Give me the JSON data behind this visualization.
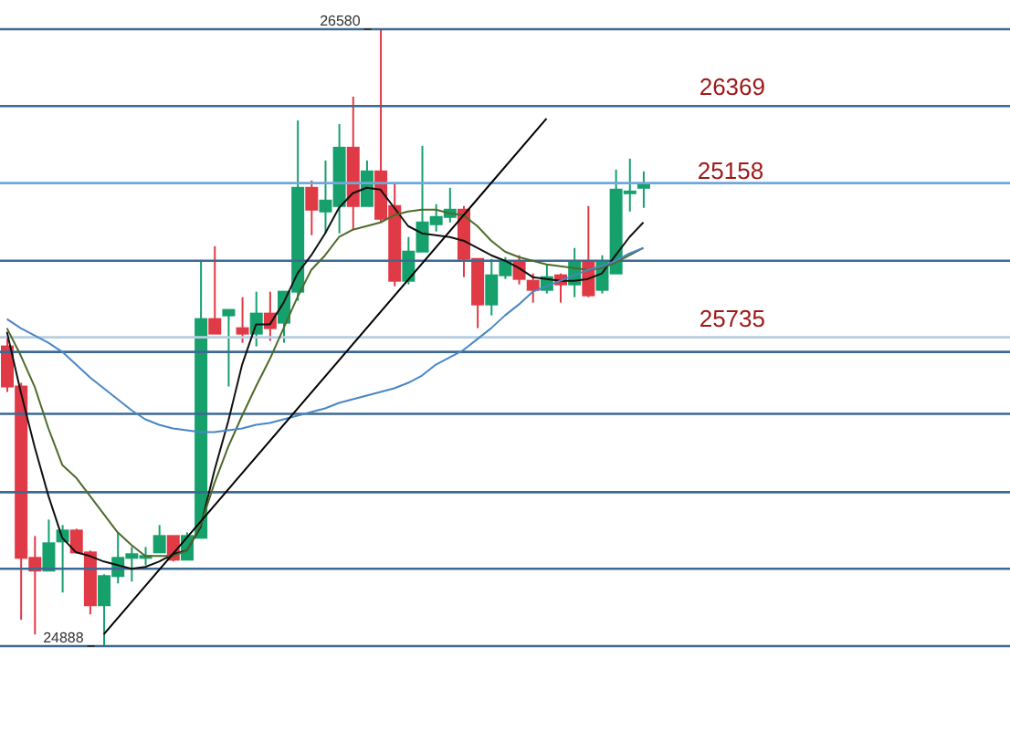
{
  "chart_data": {
    "type": "candlestick",
    "categories": [
      null,
      null,
      null,
      null,
      null,
      null,
      null,
      null,
      null,
      null,
      null,
      null,
      null,
      null,
      null,
      null,
      null,
      null,
      null,
      null,
      null,
      null,
      null,
      null,
      null,
      null,
      null,
      null,
      null,
      null,
      null,
      null,
      null,
      null,
      null,
      null,
      null,
      null,
      null,
      null,
      null,
      null,
      null,
      null,
      null,
      null,
      null
    ],
    "ohlc": [
      [
        25710,
        25735,
        25585,
        25600
      ],
      [
        25600,
        25610,
        24960,
        25130
      ],
      [
        25130,
        25190,
        24920,
        25095
      ],
      [
        25095,
        25235,
        25095,
        25170
      ],
      [
        25175,
        25220,
        25035,
        25205
      ],
      [
        25205,
        25210,
        25145,
        25145
      ],
      [
        25145,
        25150,
        24975,
        25000
      ],
      [
        25000,
        25085,
        24888,
        25080
      ],
      [
        25080,
        25200,
        25060,
        25130
      ],
      [
        25130,
        25160,
        25065,
        25140
      ],
      [
        25135,
        25160,
        25110,
        25135
      ],
      [
        25145,
        25220,
        25145,
        25190
      ],
      [
        25190,
        25190,
        25120,
        25125
      ],
      [
        25125,
        25200,
        25125,
        25190
      ],
      [
        25185,
        25945,
        25185,
        25785
      ],
      [
        25785,
        25985,
        25745,
        25745
      ],
      [
        25795,
        25810,
        25600,
        25810
      ],
      [
        25760,
        25845,
        25720,
        25745
      ],
      [
        25745,
        25860,
        25710,
        25800
      ],
      [
        25800,
        25860,
        25725,
        25760
      ],
      [
        25775,
        25860,
        25720,
        25860
      ],
      [
        25860,
        26330,
        25835,
        26145
      ],
      [
        26145,
        26165,
        26015,
        26085
      ],
      [
        26080,
        26220,
        26020,
        26110
      ],
      [
        26095,
        26320,
        26020,
        26255
      ],
      [
        26255,
        26395,
        26030,
        26095
      ],
      [
        26095,
        26220,
        26095,
        26190
      ],
      [
        26190,
        26580,
        26050,
        26060
      ],
      [
        26095,
        26160,
        25875,
        25890
      ],
      [
        25890,
        26010,
        25880,
        25970
      ],
      [
        25970,
        26260,
        25970,
        26050
      ],
      [
        26045,
        26100,
        26025,
        26065
      ],
      [
        26065,
        26145,
        26050,
        26085
      ],
      [
        26085,
        26095,
        25900,
        25950
      ],
      [
        25950,
        25950,
        25760,
        25825
      ],
      [
        25825,
        25950,
        25795,
        25905
      ],
      [
        25905,
        25955,
        25895,
        25940
      ],
      [
        25940,
        25960,
        25880,
        25895
      ],
      [
        25890,
        25910,
        25830,
        25865
      ],
      [
        25865,
        25935,
        25855,
        25900
      ],
      [
        25905,
        25910,
        25830,
        25880
      ],
      [
        25880,
        25980,
        25845,
        25940
      ],
      [
        25940,
        26095,
        25845,
        25850
      ],
      [
        25865,
        25960,
        25855,
        25940
      ],
      [
        25910,
        26195,
        25910,
        26140
      ],
      [
        26135,
        26225,
        26080,
        26135
      ],
      [
        26145,
        26190,
        26090,
        26155
      ]
    ],
    "colors": [
      "#e03a46",
      "#e03a46",
      "#e03a46",
      "#16a06c",
      "#16a06c",
      "#e03a46",
      "#e03a46",
      "#16a06c",
      "#16a06c",
      "#16a06c",
      "#16a06c",
      "#16a06c",
      "#e03a46",
      "#16a06c",
      "#16a06c",
      "#e03a46",
      "#16a06c",
      "#e03a46",
      "#16a06c",
      "#e03a46",
      "#16a06c",
      "#16a06c",
      "#e03a46",
      "#16a06c",
      "#16a06c",
      "#e03a46",
      "#16a06c",
      "#e03a46",
      "#e03a46",
      "#16a06c",
      "#16a06c",
      "#16a06c",
      "#16a06c",
      "#e03a46",
      "#e03a46",
      "#16a06c",
      "#16a06c",
      "#e03a46",
      "#e03a46",
      "#16a06c",
      "#e03a46",
      "#16a06c",
      "#e03a46",
      "#16a06c",
      "#16a06c",
      "#16a06c",
      "#16a06c"
    ],
    "series": [
      {
        "type": "line",
        "color": "#111111",
        "values": [
          25750,
          25585,
          25435,
          25300,
          25185,
          25145,
          25135,
          25120,
          25110,
          25100,
          25105,
          25120,
          25140,
          25150,
          25215,
          25370,
          25505,
          25660,
          25770,
          25770,
          25830,
          25910,
          25960,
          26020,
          26090,
          26130,
          26145,
          26140,
          26090,
          26040,
          26020,
          26015,
          26010,
          26000,
          25980,
          25960,
          25945,
          25925,
          25900,
          25895,
          25890,
          25890,
          25895,
          25910,
          25960,
          26010,
          26050
        ]
      },
      {
        "type": "line",
        "color": "#4d6b2a",
        "values": [
          25760,
          25685,
          25600,
          25485,
          25385,
          25350,
          25300,
          25250,
          25200,
          25165,
          25135,
          25135,
          25135,
          25150,
          25220,
          25335,
          25435,
          25520,
          25600,
          25675,
          25760,
          25845,
          25920,
          25960,
          26010,
          26030,
          26040,
          26050,
          26070,
          26080,
          26085,
          26085,
          26075,
          26070,
          26040,
          26000,
          25970,
          25955,
          25945,
          25935,
          25930,
          25925,
          25920,
          25925,
          25940,
          25960,
          25980
        ]
      },
      {
        "type": "line",
        "color": "#4a86c5",
        "values": [
          25785,
          25760,
          25740,
          25720,
          25695,
          25660,
          25625,
          25595,
          25565,
          25535,
          25510,
          25495,
          25485,
          25480,
          25475,
          25475,
          25480,
          25485,
          25495,
          25500,
          25510,
          25520,
          25530,
          25540,
          25555,
          25565,
          25575,
          25585,
          25595,
          25610,
          25630,
          25660,
          25680,
          25700,
          25730,
          25760,
          25795,
          25825,
          25860,
          25875,
          25890,
          25905,
          25920,
          25930,
          25945,
          25965,
          25980
        ]
      },
      {
        "type": "line",
        "color": "#000000",
        "values": [
          null,
          null,
          null,
          null,
          null,
          null,
          null,
          24920,
          null,
          null,
          null,
          null,
          null,
          null,
          null,
          null,
          null,
          null,
          null,
          null,
          null,
          null,
          null,
          null,
          null,
          null,
          null,
          null,
          null,
          null,
          null,
          null,
          null,
          null,
          null,
          null,
          null,
          null,
          null,
          26335,
          null,
          null,
          null,
          null,
          null,
          null,
          null
        ]
      }
    ],
    "ref_lines": [
      {
        "axis": "y",
        "value": 26580,
        "color": "#3d6a92"
      },
      {
        "axis": "y",
        "value": 26369,
        "label": "26369",
        "color": "#3d6a92"
      },
      {
        "axis": "y",
        "value": 26158,
        "color": "#6fa8dc"
      },
      {
        "axis": "y",
        "value": 25945,
        "color": "#3d6a92"
      },
      {
        "axis": "y",
        "value": 25735,
        "label": "25735",
        "color": "#b7cde0"
      },
      {
        "axis": "y",
        "value": 25695,
        "color": "#3d6a92"
      },
      {
        "axis": "y",
        "value": 25525,
        "color": "#3d6a92"
      },
      {
        "axis": "y",
        "value": 25310,
        "color": "#3d6a92"
      },
      {
        "axis": "y",
        "value": 25100,
        "color": "#3d6a92"
      },
      {
        "axis": "y",
        "value": 24888,
        "color": "#3d6a92"
      }
    ],
    "annotations": [
      {
        "text": "26580",
        "y": 26580
      },
      {
        "text": "24888",
        "y": 24888
      },
      "25158"
    ],
    "tick_labels": false
  }
}
